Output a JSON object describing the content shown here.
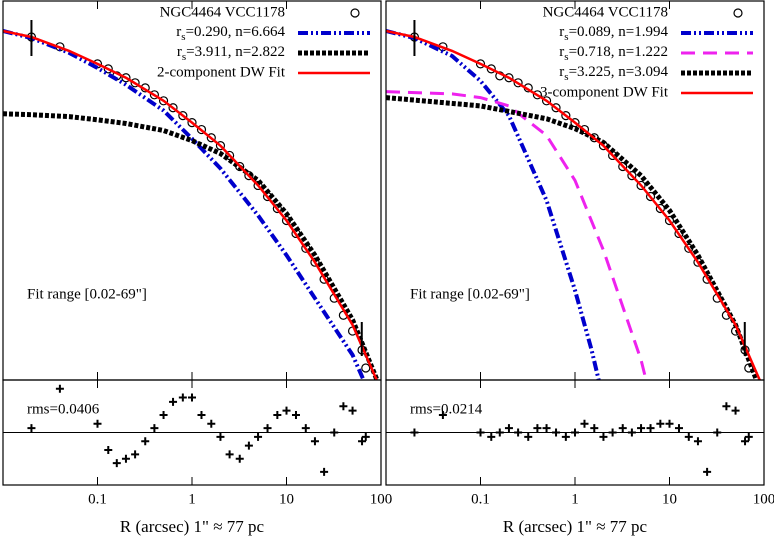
{
  "chart_data": [
    {
      "type": "line",
      "legend_loc": "upper right",
      "annotation": "Fit range [0.02-69\"]",
      "xlim": [
        0.01,
        100
      ],
      "ylim": [
        28,
        16
      ],
      "series": [
        {
          "name": "NGC4464 VCC1178",
          "color": "#000000",
          "marker": "circle",
          "x": [
            0.02,
            0.04,
            0.1,
            0.13,
            0.16,
            0.2,
            0.25,
            0.32,
            0.4,
            0.5,
            0.63,
            0.8,
            1,
            1.26,
            1.6,
            2,
            2.5,
            3.2,
            4,
            5,
            6.3,
            8,
            10,
            12.6,
            16,
            20,
            25,
            32,
            40,
            50,
            63,
            69
          ],
          "values": [
            17.14,
            17.45,
            17.99,
            18.15,
            18.37,
            18.43,
            18.59,
            18.75,
            18.97,
            19.16,
            19.38,
            19.63,
            19.85,
            20.07,
            20.33,
            20.58,
            20.89,
            21.24,
            21.53,
            21.84,
            22.19,
            22.57,
            22.95,
            23.36,
            23.83,
            24.27,
            24.81,
            25.41,
            25.95,
            26.45,
            27.05,
            27.62
          ]
        },
        {
          "name": "rs=0.290, n=6.664",
          "color": "#0000cc",
          "dash": "dashdot",
          "x": [
            0.01,
            0.02,
            0.05,
            0.1,
            0.2,
            0.5,
            1,
            2,
            5,
            10,
            20,
            50,
            100
          ],
          "values": [
            16.95,
            17.17,
            17.64,
            18.12,
            18.65,
            19.47,
            20.36,
            21.3,
            22.79,
            24.05,
            25.41,
            27.21,
            29.26
          ]
        },
        {
          "name": "rs=3.911, n=2.822",
          "color": "#000000",
          "dash": "dotted",
          "x": [
            0.01,
            0.02,
            0.05,
            0.1,
            0.2,
            0.5,
            1,
            2,
            5,
            10,
            20,
            50,
            100
          ],
          "values": [
            19.57,
            19.6,
            19.66,
            19.76,
            19.88,
            20.1,
            20.42,
            20.83,
            21.68,
            22.73,
            24.05,
            26.1,
            28.31
          ]
        },
        {
          "name": "2-component DW Fit",
          "color": "#ff0000",
          "dash": "solid",
          "x": [
            0.01,
            0.02,
            0.05,
            0.1,
            0.2,
            0.5,
            1,
            2,
            5,
            10,
            20,
            50,
            100
          ],
          "values": [
            16.95,
            17.14,
            17.58,
            17.99,
            18.43,
            19.16,
            19.85,
            20.58,
            21.84,
            22.95,
            24.27,
            26.26,
            28.31
          ]
        }
      ]
    },
    {
      "type": "scatter",
      "annotation": "rms=0.0406",
      "x_label": "R (arcsec)  1\" ≈ 77 pc",
      "xlim": [
        0.01,
        100
      ],
      "ylim": [
        -0.12,
        0.12
      ],
      "xticks": [
        0.1,
        1,
        10,
        100
      ],
      "color": "#000000",
      "x": [
        0.02,
        0.04,
        0.1,
        0.13,
        0.16,
        0.2,
        0.25,
        0.32,
        0.4,
        0.5,
        0.63,
        0.8,
        1,
        1.26,
        1.6,
        2,
        2.5,
        3.2,
        4,
        5,
        6.3,
        8,
        10,
        12.6,
        16,
        20,
        25,
        32,
        40,
        50,
        63,
        69
      ],
      "values": [
        0.01,
        0.1,
        0.02,
        -0.04,
        -0.07,
        -0.06,
        -0.05,
        -0.02,
        0.01,
        0.04,
        0.07,
        0.08,
        0.08,
        0.04,
        0.02,
        -0.01,
        -0.05,
        -0.06,
        -0.03,
        -0.01,
        0.01,
        0.04,
        0.05,
        0.04,
        0.01,
        -0.02,
        -0.09,
        0,
        0.06,
        0.05,
        -0.02,
        -0.01
      ]
    },
    {
      "type": "line",
      "legend_loc": "upper right",
      "annotation": "Fit range [0.02-69\"]",
      "xlim": [
        0.01,
        100
      ],
      "ylim": [
        28,
        16
      ],
      "series": [
        {
          "name": "NGC4464 VCC1178",
          "color": "#000000",
          "marker": "circle",
          "x": [
            0.02,
            0.04,
            0.1,
            0.13,
            0.16,
            0.2,
            0.25,
            0.32,
            0.4,
            0.5,
            0.63,
            0.8,
            1,
            1.26,
            1.6,
            2,
            2.5,
            3.2,
            4,
            5,
            6.3,
            8,
            10,
            12.6,
            16,
            20,
            25,
            32,
            40,
            50,
            63,
            69
          ],
          "values": [
            17.14,
            17.45,
            17.99,
            18.15,
            18.37,
            18.43,
            18.59,
            18.75,
            18.97,
            19.16,
            19.38,
            19.63,
            19.85,
            20.07,
            20.33,
            20.58,
            20.89,
            21.24,
            21.53,
            21.84,
            22.19,
            22.57,
            22.95,
            23.36,
            23.83,
            24.27,
            24.81,
            25.41,
            25.95,
            26.45,
            27.05,
            27.62
          ]
        },
        {
          "name": "rs=0.089, n=1.994",
          "color": "#0000cc",
          "dash": "dashdot",
          "x": [
            0.01,
            0.02,
            0.05,
            0.1,
            0.2,
            0.5,
            1,
            1.5,
            2
          ],
          "values": [
            16.95,
            17.17,
            17.74,
            18.53,
            19.63,
            22.32,
            25.16,
            27.05,
            28.63
          ]
        },
        {
          "name": "rs=0.718, n=1.222",
          "color": "#ee22ee",
          "dash": "dashed",
          "x": [
            0.01,
            0.05,
            0.1,
            0.2,
            0.5,
            1,
            2,
            5,
            6
          ],
          "values": [
            18.87,
            18.94,
            19.06,
            19.32,
            20.26,
            21.68,
            23.89,
            27.37,
            28.31
          ]
        },
        {
          "name": "rs=3.225, n=3.094",
          "color": "#000000",
          "dash": "dotted",
          "x": [
            0.01,
            0.1,
            0.5,
            1,
            2,
            5,
            10,
            20,
            50,
            100
          ],
          "values": [
            19.06,
            19.32,
            19.73,
            20.04,
            20.48,
            21.53,
            22.63,
            24.05,
            26.26,
            28.63
          ]
        },
        {
          "name": "3-component DW Fit",
          "color": "#ff0000",
          "dash": "solid",
          "x": [
            0.01,
            0.02,
            0.05,
            0.1,
            0.2,
            0.5,
            1,
            2,
            5,
            10,
            20,
            50,
            100
          ],
          "values": [
            16.95,
            17.14,
            17.58,
            17.99,
            18.43,
            19.16,
            19.85,
            20.58,
            21.84,
            22.95,
            24.27,
            26.26,
            28.31
          ]
        }
      ]
    },
    {
      "type": "scatter",
      "annotation": "rms=0.0214",
      "x_label": "R (arcsec)  1\" ≈ 77 pc",
      "xlim": [
        0.01,
        100
      ],
      "ylim": [
        -0.12,
        0.12
      ],
      "xticks": [
        0.1,
        1,
        10,
        100
      ],
      "color": "#000000",
      "x": [
        0.02,
        0.04,
        0.1,
        0.13,
        0.16,
        0.2,
        0.25,
        0.32,
        0.4,
        0.5,
        0.63,
        0.8,
        1,
        1.26,
        1.6,
        2,
        2.5,
        3.2,
        4,
        5,
        6.3,
        8,
        10,
        12.6,
        16,
        20,
        25,
        32,
        40,
        50,
        63,
        69
      ],
      "values": [
        0,
        0.04,
        0,
        -0.01,
        0,
        0.01,
        0,
        -0.01,
        0.01,
        0.01,
        0,
        -0.01,
        0,
        0.02,
        0.01,
        -0.01,
        0,
        0.01,
        0,
        0.01,
        0.01,
        0.02,
        0.02,
        0.01,
        -0.01,
        -0.02,
        -0.09,
        0,
        0.06,
        0.05,
        -0.02,
        -0.01
      ]
    }
  ]
}
